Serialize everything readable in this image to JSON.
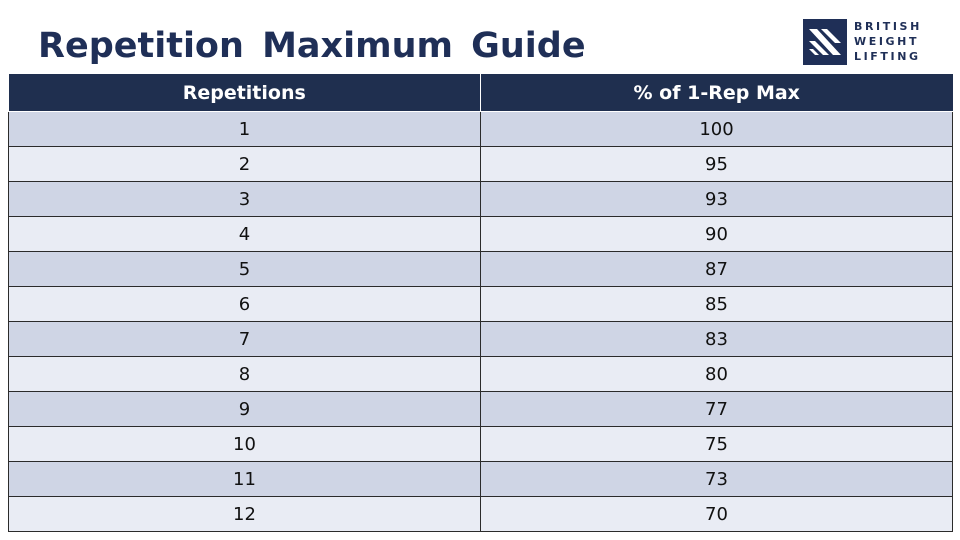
{
  "title": "Repetition Maximum Guide",
  "logo": {
    "lines": [
      "BRITISH",
      "WEIGHT",
      "LIFTING"
    ],
    "icon": "british-weight-lifting-logo-icon",
    "brand_color": "#1f2f57"
  },
  "colors": {
    "header_bg": "#1f2f4f",
    "row_odd_bg": "#cfd5e5",
    "row_even_bg": "#e9ecf4",
    "title": "#1f2f57"
  },
  "table": {
    "headers": [
      "Repetitions",
      "% of 1-Rep Max"
    ],
    "rows": [
      [
        "1",
        "100"
      ],
      [
        "2",
        "95"
      ],
      [
        "3",
        "93"
      ],
      [
        "4",
        "90"
      ],
      [
        "5",
        "87"
      ],
      [
        "6",
        "85"
      ],
      [
        "7",
        "83"
      ],
      [
        "8",
        "80"
      ],
      [
        "9",
        "77"
      ],
      [
        "10",
        "75"
      ],
      [
        "11",
        "73"
      ],
      [
        "12",
        "70"
      ]
    ]
  }
}
